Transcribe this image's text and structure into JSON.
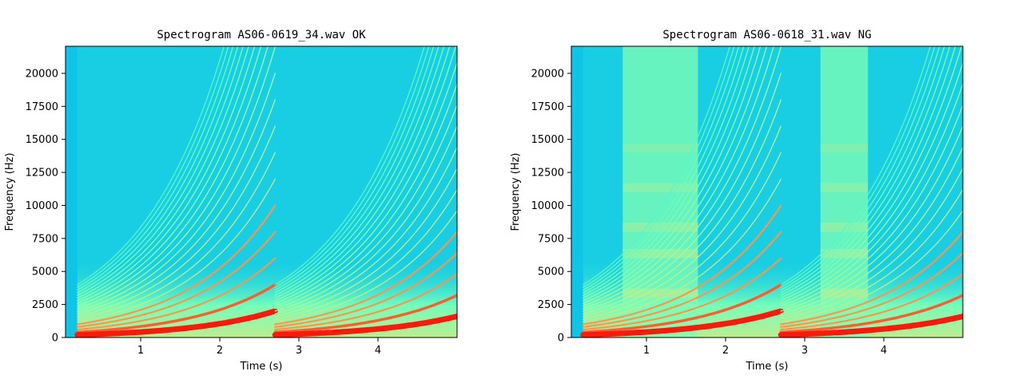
{
  "chart_data": [
    {
      "type": "heatmap",
      "title": "Spectrogram AS06-0619_34.wav OK",
      "xlabel": "Time (s)",
      "ylabel": "Frequency (Hz)",
      "xlim": [
        0.05,
        5.0
      ],
      "ylim": [
        0,
        22050
      ],
      "xticks": [
        1,
        2,
        3,
        4
      ],
      "yticks": [
        0,
        2500,
        5000,
        7500,
        10000,
        12500,
        15000,
        17500,
        20000
      ],
      "colormap": "rainbow",
      "sweeps": [
        {
          "t0": 0.2,
          "t1": 2.7,
          "f_start": 200,
          "f_end": 2000
        },
        {
          "t0": 2.7,
          "t1": 5.0,
          "f_start": 200,
          "f_end": 1600
        }
      ],
      "broadband_bands": []
    },
    {
      "type": "heatmap",
      "title": "Spectrogram AS06-0618_31.wav NG",
      "xlabel": "Time (s)",
      "ylabel": "Frequency (Hz)",
      "xlim": [
        0.05,
        5.0
      ],
      "ylim": [
        0,
        22050
      ],
      "xticks": [
        1,
        2,
        3,
        4
      ],
      "yticks": [
        0,
        2500,
        5000,
        7500,
        10000,
        12500,
        15000,
        17500,
        20000
      ],
      "colormap": "rainbow",
      "sweeps": [
        {
          "t0": 0.2,
          "t1": 2.7,
          "f_start": 200,
          "f_end": 2000
        },
        {
          "t0": 2.7,
          "t1": 5.0,
          "f_start": 200,
          "f_end": 1600
        }
      ],
      "broadband_bands": [
        {
          "t0": 0.7,
          "t1": 1.65
        },
        {
          "t0": 3.2,
          "t1": 3.8
        }
      ]
    }
  ]
}
